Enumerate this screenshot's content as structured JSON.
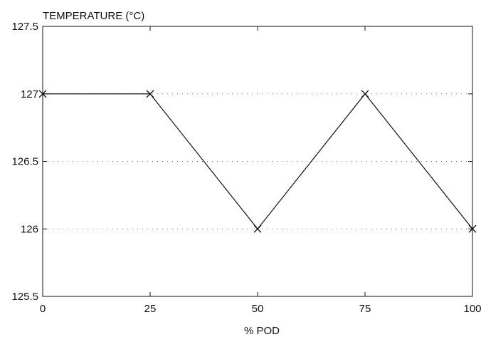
{
  "chart_data": {
    "type": "line",
    "title": "",
    "xlabel": "% POD",
    "ylabel": "TEMPERATURE (°C)",
    "xlim": [
      0,
      100
    ],
    "ylim": [
      125.5,
      127.5
    ],
    "xticks": [
      0,
      25,
      50,
      75,
      100
    ],
    "yticks": [
      125.5,
      126,
      126.5,
      127,
      127.5
    ],
    "xtick_labels": [
      "0",
      "25",
      "50",
      "75",
      "100"
    ],
    "ytick_labels": [
      "125.5",
      "126",
      "126.5",
      "127",
      "127.5"
    ],
    "grid": "dotted-horizontal",
    "marker": "x",
    "series": [
      {
        "x": [
          0,
          25,
          50,
          75,
          100
        ],
        "y": [
          127,
          127,
          126,
          127,
          126
        ]
      }
    ]
  }
}
